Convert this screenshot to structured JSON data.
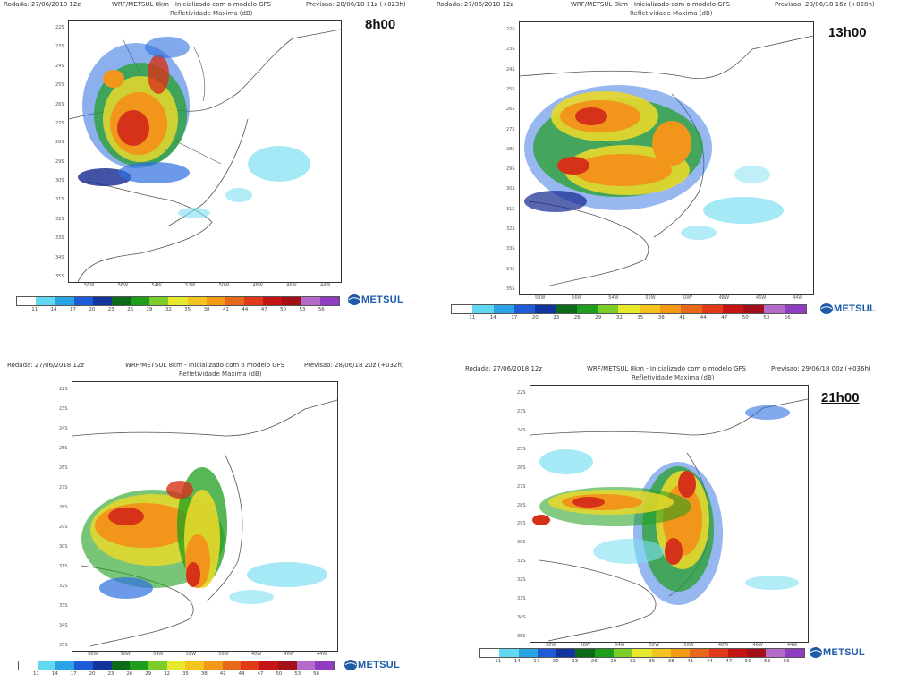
{
  "panels": [
    {
      "id": "p1",
      "left_header": "Rodada: 27/06/2018 12z",
      "center_header": "WRF/METSUL 8km - Inicializado com o modelo GFS",
      "right_header": "Previsao: 28/06/18 11z (+023h)",
      "subtitle": "Refletividade Maxima (dB)",
      "time_label": "8h00",
      "time_underlined": false,
      "yticks": [
        "22S",
        "23S",
        "24S",
        "25S",
        "26S",
        "27S",
        "28S",
        "29S",
        "30S",
        "31S",
        "32S",
        "33S",
        "34S",
        "35S"
      ],
      "xticks": [
        "58W",
        "56W",
        "54W",
        "52W",
        "50W",
        "48W",
        "46W",
        "44W"
      ],
      "scale": [
        "11",
        "14",
        "17",
        "20",
        "23",
        "26",
        "29",
        "32",
        "35",
        "38",
        "41",
        "44",
        "47",
        "50",
        "53",
        "56"
      ],
      "logo": "METSUL"
    },
    {
      "id": "p2",
      "left_header": "Rodada: 27/06/2018 12z",
      "center_header": "WRF/METSUL 8km - Inicializado com o modelo GFS",
      "right_header": "Previsao: 28/06/18 16z (+028h)",
      "subtitle": "Refletividade Maxima (dB)",
      "time_label": "13h00",
      "time_underlined": true,
      "yticks": [
        "22S",
        "23S",
        "24S",
        "25S",
        "26S",
        "27S",
        "28S",
        "29S",
        "30S",
        "31S",
        "32S",
        "33S",
        "34S",
        "35S"
      ],
      "xticks": [
        "58W",
        "56W",
        "54W",
        "52W",
        "50W",
        "48W",
        "46W",
        "44W"
      ],
      "scale": [
        "11",
        "14",
        "17",
        "20",
        "23",
        "26",
        "29",
        "32",
        "35",
        "38",
        "41",
        "44",
        "47",
        "50",
        "53",
        "56"
      ],
      "logo": "METSUL"
    },
    {
      "id": "p3",
      "left_header": "Rodada: 27/06/2018 12z",
      "center_header": "WRF/METSUL 8km - Inicializado com o modelo GFS",
      "right_header": "Previsao: 28/06/18 20z (+032h)",
      "subtitle": "Refletividade Maxima (dB)",
      "time_label": "",
      "time_underlined": false,
      "yticks": [
        "22S",
        "23S",
        "24S",
        "25S",
        "26S",
        "27S",
        "28S",
        "29S",
        "30S",
        "31S",
        "32S",
        "33S",
        "34S",
        "35S"
      ],
      "xticks": [
        "58W",
        "56W",
        "54W",
        "52W",
        "50W",
        "48W",
        "46W",
        "44W"
      ],
      "scale": [
        "11",
        "14",
        "17",
        "20",
        "23",
        "26",
        "29",
        "32",
        "35",
        "38",
        "41",
        "44",
        "47",
        "50",
        "53",
        "56"
      ],
      "logo": "METSUL"
    },
    {
      "id": "p4",
      "left_header": "Rodada: 27/06/2018 12z",
      "center_header": "WRF/METSUL 8km - Inicializado com o modelo GFS",
      "right_header": "Previsao: 29/06/18 00z (+036h)",
      "subtitle": "Refletividade Maxima (dB)",
      "time_label": "21h00",
      "time_underlined": true,
      "yticks": [
        "22S",
        "23S",
        "24S",
        "25S",
        "26S",
        "27S",
        "28S",
        "29S",
        "30S",
        "31S",
        "32S",
        "33S",
        "34S",
        "35S"
      ],
      "xticks": [
        "58W",
        "56W",
        "54W",
        "52W",
        "50W",
        "48W",
        "46W",
        "44W"
      ],
      "scale": [
        "11",
        "14",
        "17",
        "20",
        "23",
        "26",
        "29",
        "32",
        "35",
        "38",
        "41",
        "44",
        "47",
        "50",
        "53",
        "56"
      ],
      "logo": "METSUL"
    }
  ],
  "colors": {
    "scale": [
      "#ffffff",
      "#5fd8f0",
      "#2ba4e6",
      "#1f5bd6",
      "#13349c",
      "#0b6b18",
      "#1f9e1e",
      "#7ccd2a",
      "#e6e82b",
      "#f5c31e",
      "#f29a18",
      "#e8681a",
      "#e03a18",
      "#c61414",
      "#a2101a",
      "#b46ac8",
      "#8f3cc0"
    ],
    "land_outline": "#555555",
    "light_blue": "#7fe0f2",
    "med_blue": "#2d6fe0",
    "dark_blue": "#13278f",
    "green": "#1f9e1e",
    "yellow": "#e8d82b",
    "orange": "#f1961b",
    "red": "#d6321a"
  }
}
